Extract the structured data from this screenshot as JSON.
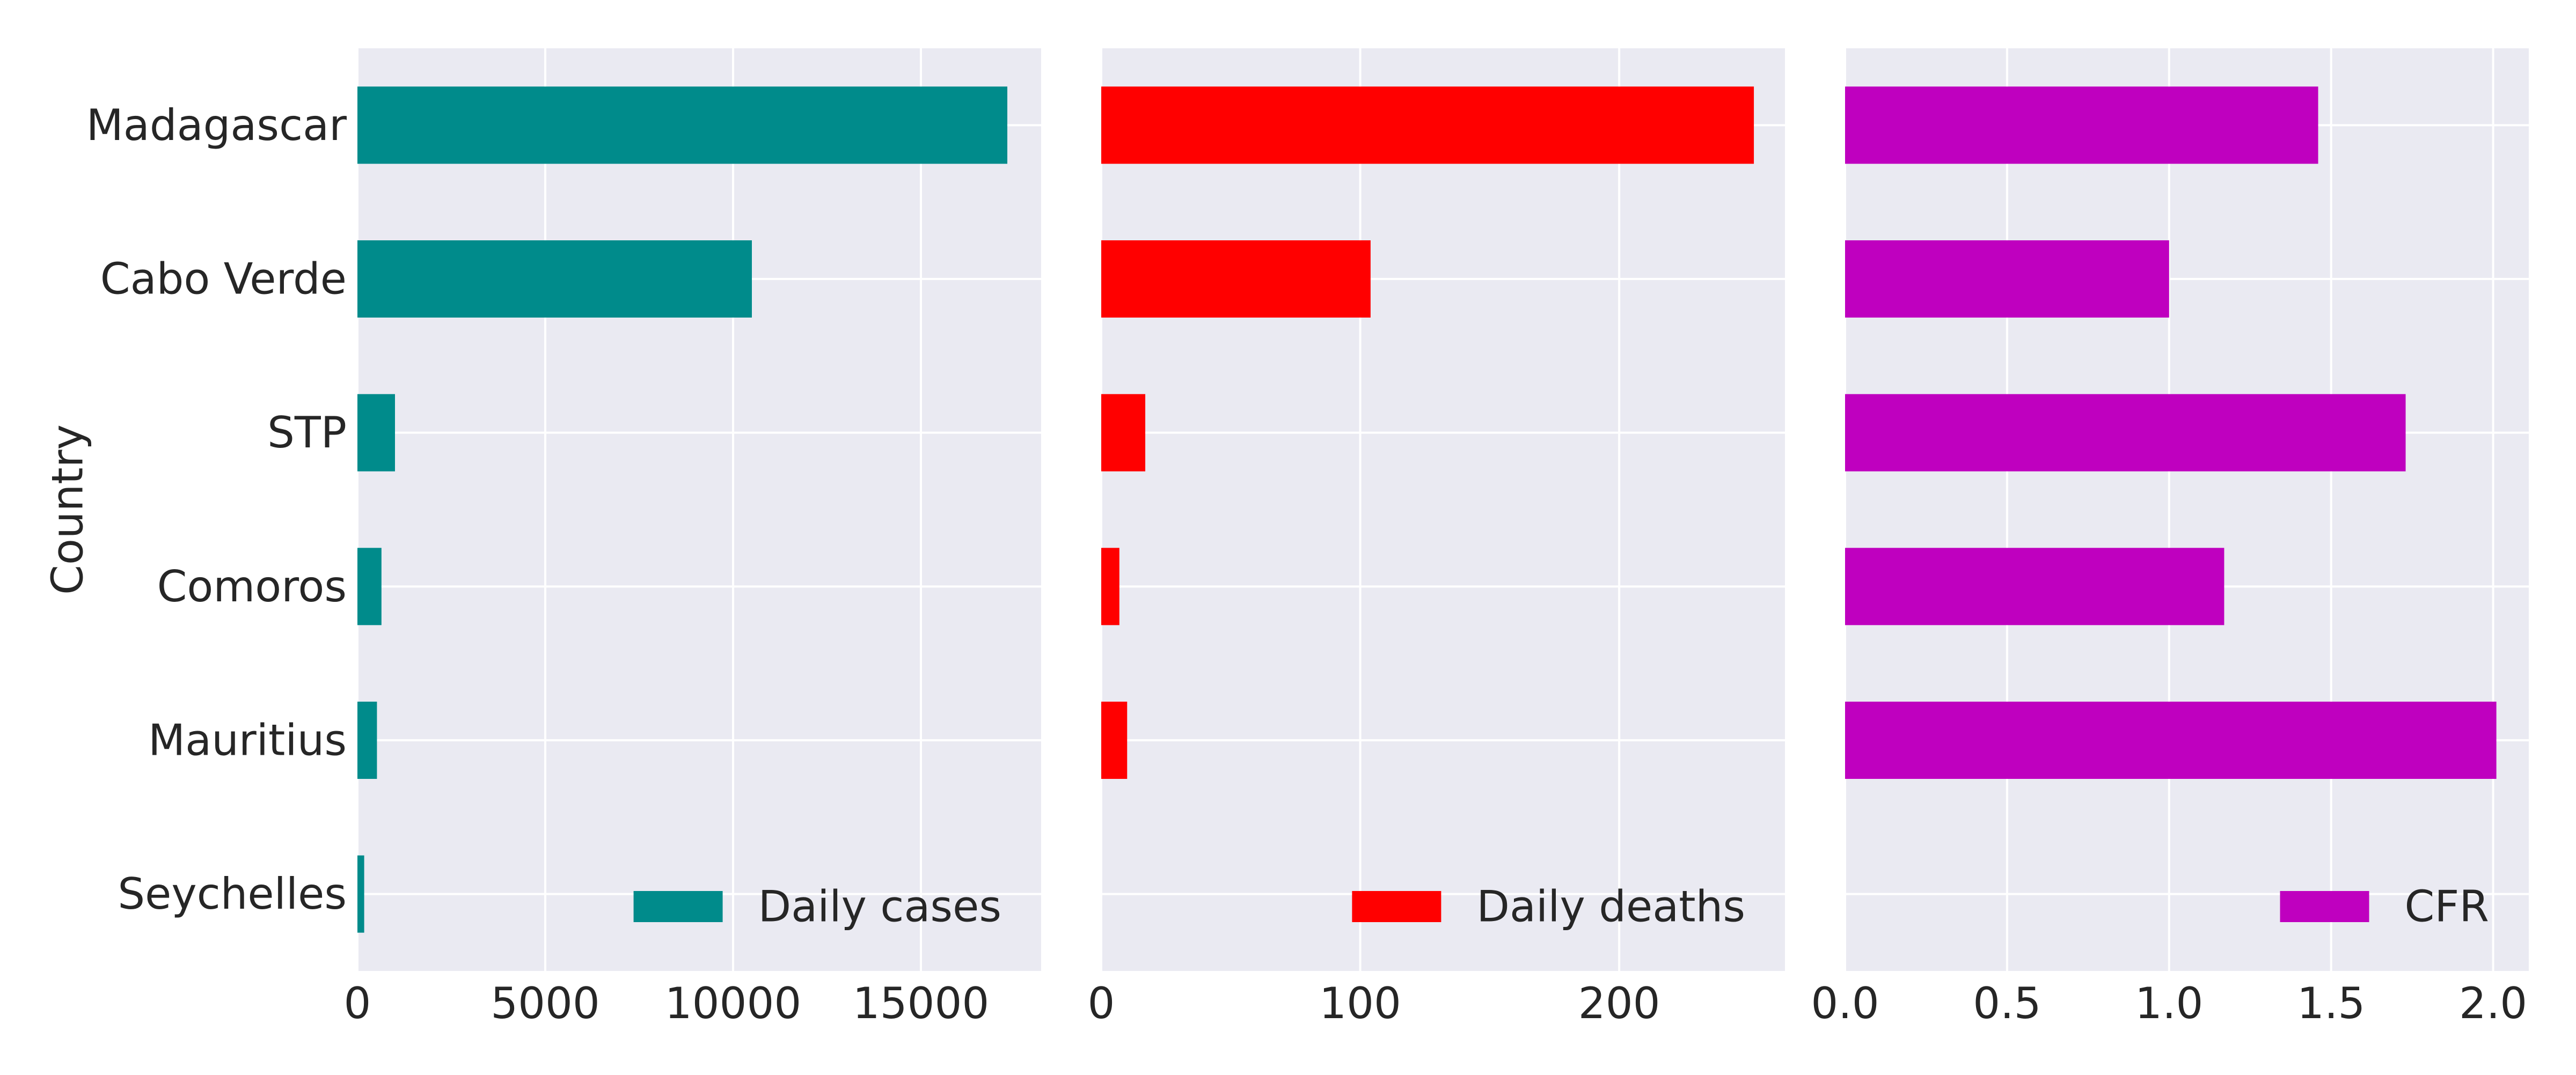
{
  "chart_data": [
    {
      "type": "bar",
      "orientation": "horizontal",
      "ylabel": "Country",
      "categories": [
        "Madagascar",
        "Cabo Verde",
        "STP",
        "Comoros",
        "Mauritius",
        "Seychelles"
      ],
      "series": [
        {
          "name": "Daily cases",
          "values": [
            17300,
            10500,
            1000,
            640,
            520,
            180
          ]
        }
      ],
      "color": "#008b8b",
      "xlim": [
        0,
        18200
      ],
      "xticks": [
        0,
        5000,
        10000,
        15000
      ],
      "xtick_labels": [
        "0",
        "5000",
        "10000",
        "15000"
      ],
      "legend": "lower-right",
      "grid": true
    },
    {
      "type": "bar",
      "orientation": "horizontal",
      "categories": [
        "Madagascar",
        "Cabo Verde",
        "STP",
        "Comoros",
        "Mauritius",
        "Seychelles"
      ],
      "series": [
        {
          "name": "Daily deaths",
          "values": [
            252,
            104,
            17,
            7,
            10,
            0
          ]
        }
      ],
      "color": "#ff0000",
      "xlim": [
        0,
        264
      ],
      "xticks": [
        0,
        100,
        200
      ],
      "xtick_labels": [
        "0",
        "100",
        "200"
      ],
      "legend": "lower-right",
      "grid": true
    },
    {
      "type": "bar",
      "orientation": "horizontal",
      "categories": [
        "Madagascar",
        "Cabo Verde",
        "STP",
        "Comoros",
        "Mauritius",
        "Seychelles"
      ],
      "series": [
        {
          "name": "CFR",
          "values": [
            1.46,
            1.0,
            1.73,
            1.17,
            2.01,
            0
          ]
        }
      ],
      "color": "#bf00bf",
      "xlim": [
        0,
        2.11
      ],
      "xticks": [
        0,
        0.5,
        1.0,
        1.5,
        2.0
      ],
      "xtick_labels": [
        "0.0",
        "0.5",
        "1.0",
        "1.5",
        "2.0"
      ],
      "legend": "lower-right",
      "grid": true
    }
  ]
}
